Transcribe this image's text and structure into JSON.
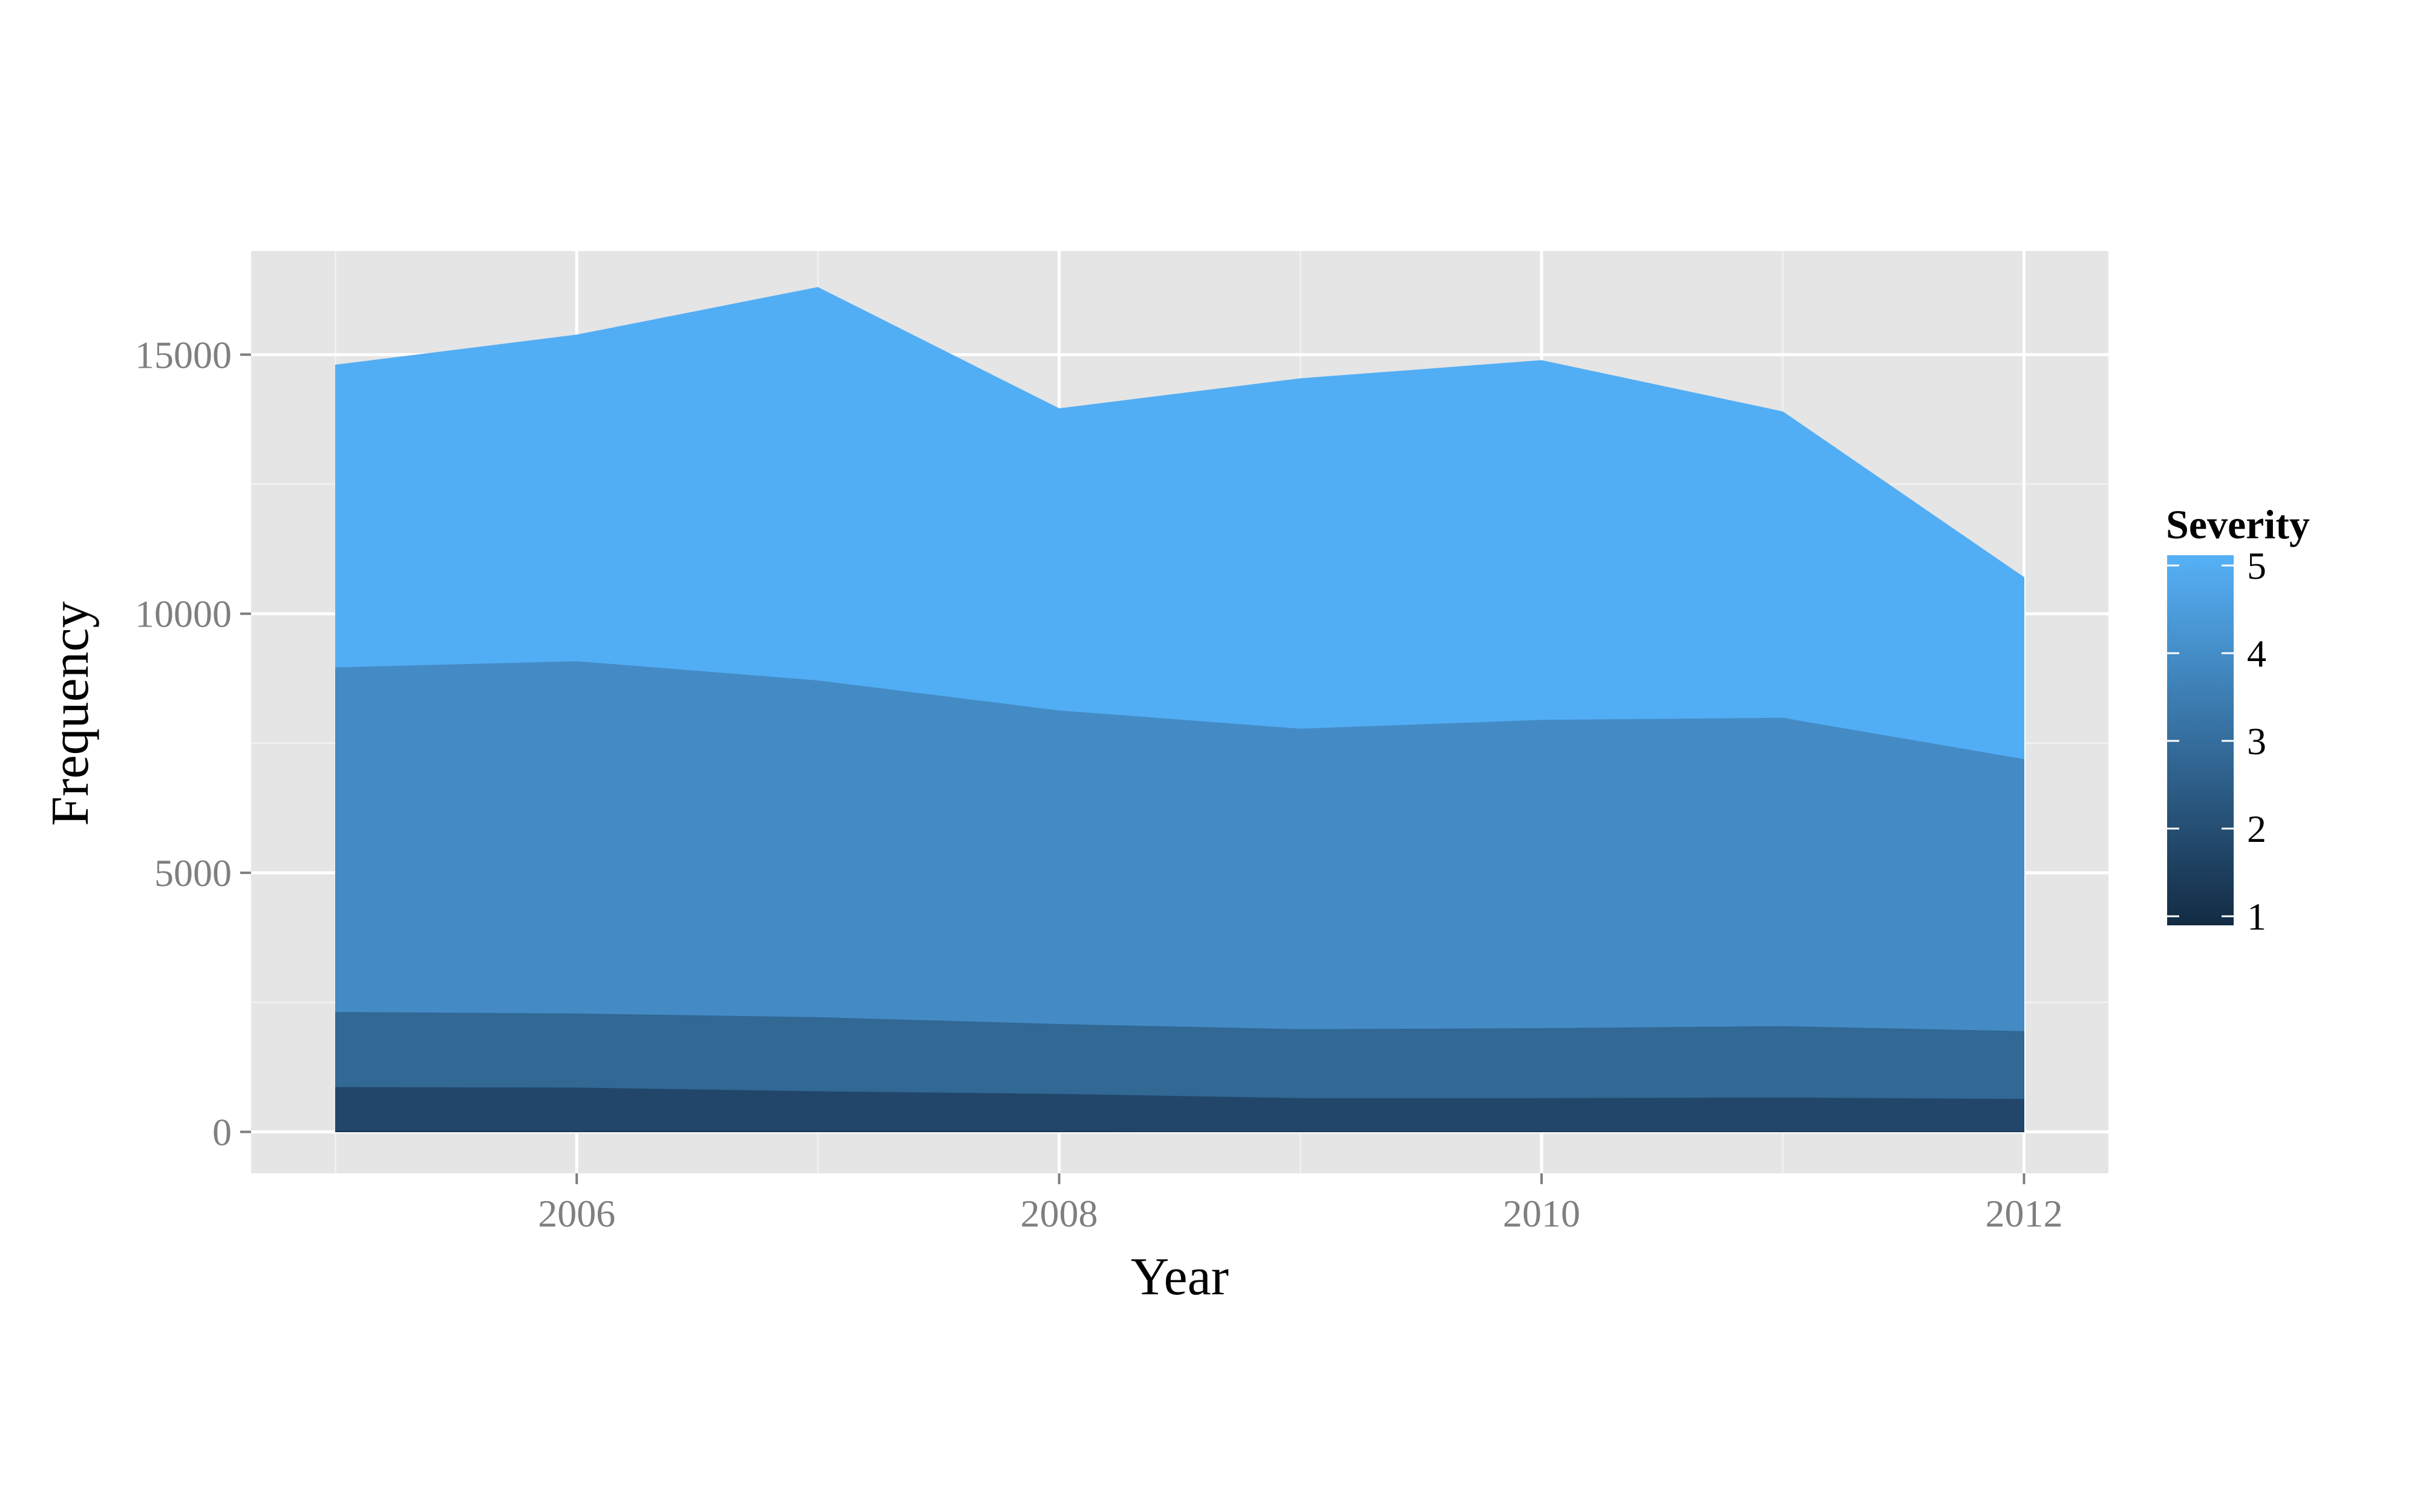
{
  "chart_data": {
    "type": "area",
    "stacked": true,
    "title": "",
    "xlabel": "Year",
    "ylabel": "Frequency",
    "x": [
      2005,
      2006,
      2007,
      2008,
      2009,
      2010,
      2011,
      2012
    ],
    "xlim": [
      2004.65,
      2012.35
    ],
    "ylim": [
      -800,
      17000
    ],
    "x_ticks": [
      "2006",
      "2008",
      "2010",
      "2012"
    ],
    "y_ticks": [
      "0",
      "5000",
      "10000",
      "15000"
    ],
    "grid": true,
    "legend": {
      "title": "Severity",
      "position": "right",
      "type": "colorbar",
      "labels": [
        "1",
        "2",
        "3",
        "4",
        "5"
      ]
    },
    "series": [
      {
        "name": "1",
        "color": "#132B43",
        "values": [
          15,
          15,
          14,
          13,
          12,
          12,
          12,
          12
        ]
      },
      {
        "name": "2",
        "color": "#22466A",
        "values": [
          855,
          845,
          775,
          725,
          645,
          645,
          655,
          628
        ]
      },
      {
        "name": "3",
        "color": "#316894",
        "values": [
          1450,
          1430,
          1430,
          1350,
          1330,
          1350,
          1380,
          1310
        ]
      },
      {
        "name": "4",
        "color": "#448BC6",
        "values": [
          6650,
          6800,
          6500,
          6050,
          5800,
          5950,
          5950,
          5250
        ]
      },
      {
        "name": "5",
        "color": "#52AEF4",
        "values": [
          5830,
          6290,
          7580,
          5820,
          6750,
          6930,
          5900,
          3500
        ]
      }
    ]
  }
}
